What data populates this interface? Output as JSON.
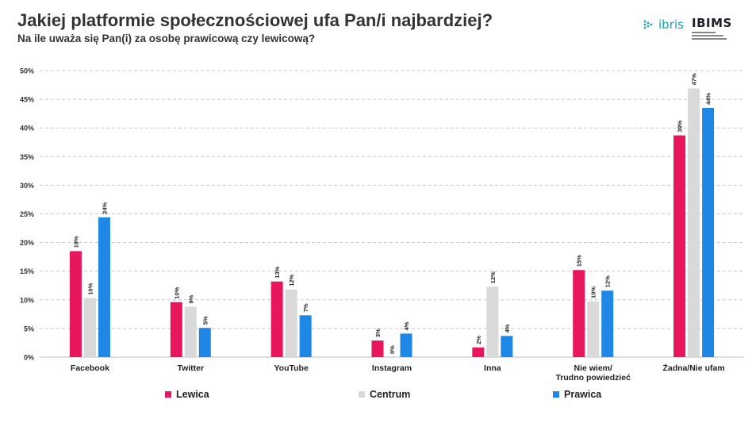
{
  "header": {
    "title": "Jakiej platformie społecznościowej ufa Pan/i najbardziej?",
    "subtitle": "Na ile uważa się Pan(i) za osobę prawicową czy lewicową?"
  },
  "logos": {
    "ibris": "ibris",
    "ibims": "IBIMS"
  },
  "chart_data": {
    "type": "bar",
    "categories": [
      "Facebook",
      "Twitter",
      "YouTube",
      "Instagram",
      "Inna",
      "Nie wiem/ Trudno powiedzieć",
      "Żadna/Nie ufam"
    ],
    "series": [
      {
        "name": "Lewica",
        "color": "#e8175d",
        "values": [
          18.5,
          9.6,
          13.2,
          2.9,
          1.7,
          15.2,
          38.7
        ],
        "labels": [
          "19%",
          "10%",
          "13%",
          "3%",
          "2%",
          "15%",
          "39%"
        ]
      },
      {
        "name": "Centrum",
        "color": "#d9d9d9",
        "values": [
          10.3,
          8.8,
          11.8,
          0.0,
          12.3,
          9.7,
          46.9
        ],
        "labels": [
          "10%",
          "9%",
          "12%",
          "0%",
          "12%",
          "10%",
          "47%"
        ]
      },
      {
        "name": "Prawica",
        "color": "#1f87e5",
        "values": [
          24.4,
          5.1,
          7.3,
          4.1,
          3.7,
          11.6,
          43.5
        ],
        "labels": [
          "24%",
          "5%",
          "7%",
          "4%",
          "4%",
          "12%",
          "44%"
        ]
      }
    ],
    "yticks": [
      "0%",
      "5%",
      "10%",
      "15%",
      "20%",
      "25%",
      "30%",
      "35%",
      "40%",
      "45%",
      "50%"
    ],
    "ylim": [
      0,
      50
    ],
    "grid": true,
    "legend_position": "bottom"
  }
}
